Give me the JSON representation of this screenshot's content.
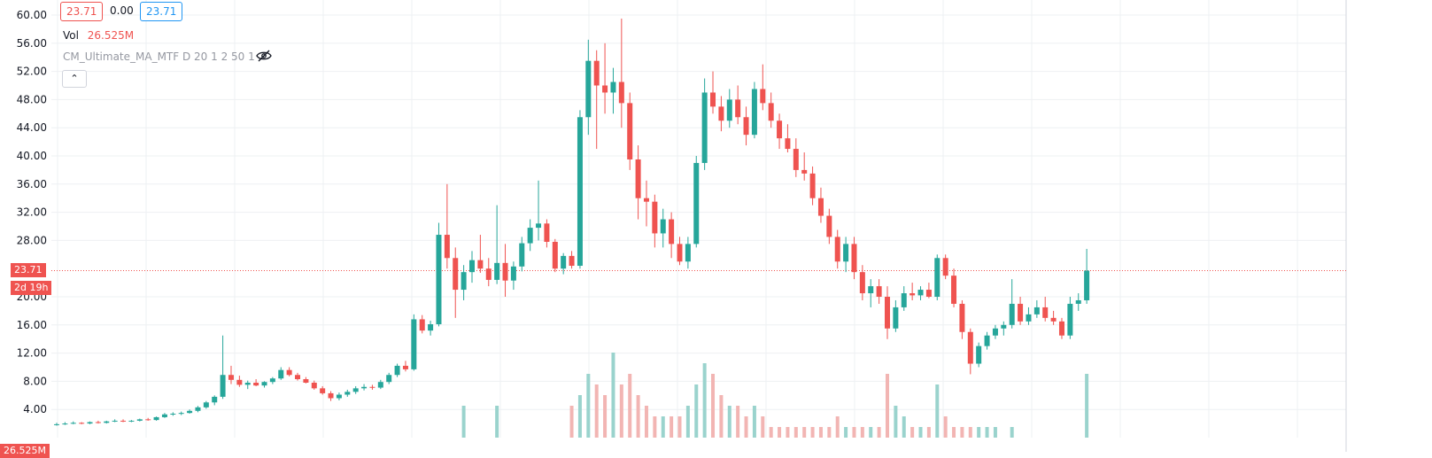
{
  "header": {
    "open_value": "23.71",
    "change_value": "0.00",
    "close_value": "23.71",
    "vol_label": "Vol",
    "vol_value": "26.525M",
    "indicator_label": "CM_Ultimate_MA_MTF D 20 1 2 50 1",
    "collapse_glyph": "⌃"
  },
  "price_tag": {
    "value": "23.71",
    "countdown": "2d 19h"
  },
  "volume_tag": {
    "value": "26.525M"
  },
  "colors": {
    "up": "#26a69a",
    "down": "#ef5350",
    "up_volume": "#9ad3cd",
    "down_volume": "#f2b5b3",
    "grid": "#eef0f3",
    "price_line": "#ef5350",
    "open_box_border": "#ef5350",
    "close_box_border": "#2196f3"
  },
  "icons": {
    "hide_icon": "eye-crossed-icon",
    "collapse_icon": "chevron-up-icon"
  },
  "chart_data": {
    "type": "candlestick",
    "y_tick_labels": [
      "60.00",
      "56.00",
      "52.00",
      "48.00",
      "44.00",
      "40.00",
      "36.00",
      "32.00",
      "28.00",
      "20.00",
      "16.00",
      "12.00",
      "8.00",
      "4.00"
    ],
    "ylim": [
      0,
      60
    ],
    "grid": true,
    "last_price": 23.71,
    "candles": [
      [
        0,
        1.9,
        2.1,
        1.7,
        1.9,
        0.0
      ],
      [
        1,
        1.9,
        2.2,
        1.8,
        2.0,
        0.0
      ],
      [
        2,
        2.0,
        2.3,
        1.9,
        2.1,
        0.0
      ],
      [
        3,
        2.1,
        2.2,
        1.9,
        2.0,
        0.0
      ],
      [
        4,
        2.0,
        2.3,
        1.9,
        2.2,
        0.0
      ],
      [
        5,
        2.2,
        2.4,
        2.0,
        2.1,
        0.0
      ],
      [
        6,
        2.1,
        2.4,
        2.0,
        2.3,
        0.0
      ],
      [
        7,
        2.3,
        2.6,
        2.2,
        2.4,
        0.0
      ],
      [
        8,
        2.4,
        2.6,
        2.2,
        2.3,
        0.0
      ],
      [
        9,
        2.3,
        2.5,
        2.2,
        2.4,
        0.0
      ],
      [
        10,
        2.4,
        2.7,
        2.3,
        2.6,
        0.0
      ],
      [
        11,
        2.6,
        2.8,
        2.4,
        2.5,
        0.0
      ],
      [
        12,
        2.5,
        3.0,
        2.4,
        2.9,
        0.0
      ],
      [
        13,
        2.9,
        3.5,
        2.8,
        3.3,
        0.0
      ],
      [
        14,
        3.3,
        3.6,
        3.1,
        3.4,
        0.0
      ],
      [
        15,
        3.4,
        3.7,
        3.2,
        3.5,
        0.0
      ],
      [
        16,
        3.5,
        4.0,
        3.4,
        3.8,
        0.0
      ],
      [
        17,
        3.8,
        4.5,
        3.6,
        4.3,
        0.0
      ],
      [
        18,
        4.3,
        5.2,
        4.1,
        5.0,
        0.0
      ],
      [
        19,
        5.0,
        6.0,
        4.6,
        5.8,
        0.0
      ],
      [
        20,
        5.8,
        14.5,
        5.5,
        8.9,
        0.0
      ],
      [
        21,
        8.9,
        10.2,
        7.6,
        8.2,
        0.0
      ],
      [
        22,
        8.2,
        8.8,
        7.2,
        7.5,
        0.0
      ],
      [
        23,
        7.5,
        8.1,
        6.9,
        7.8,
        0.0
      ],
      [
        24,
        7.8,
        8.3,
        7.3,
        7.4,
        0.0
      ],
      [
        25,
        7.4,
        8.0,
        7.1,
        7.9,
        0.0
      ],
      [
        26,
        7.9,
        8.6,
        7.6,
        8.4,
        0.0
      ],
      [
        27,
        8.4,
        10.0,
        8.2,
        9.6,
        0.0
      ],
      [
        28,
        9.6,
        10.0,
        8.7,
        8.9,
        0.0
      ],
      [
        29,
        8.9,
        9.2,
        8.1,
        8.3,
        0.0
      ],
      [
        30,
        8.3,
        8.6,
        7.7,
        7.8,
        0.0
      ],
      [
        31,
        7.8,
        8.1,
        6.8,
        7.0,
        0.0
      ],
      [
        32,
        7.0,
        7.3,
        6.1,
        6.3,
        0.0
      ],
      [
        33,
        6.3,
        6.6,
        5.2,
        5.6,
        0.0
      ],
      [
        34,
        5.6,
        6.4,
        5.3,
        6.1,
        0.0
      ],
      [
        35,
        6.1,
        6.8,
        5.8,
        6.5,
        0.0
      ],
      [
        36,
        6.5,
        7.3,
        6.2,
        7.0,
        0.0
      ],
      [
        37,
        7.0,
        7.6,
        6.7,
        7.2,
        0.0
      ],
      [
        38,
        7.2,
        7.5,
        6.8,
        7.1,
        0.0
      ],
      [
        39,
        7.1,
        8.2,
        6.9,
        7.9,
        0.0
      ],
      [
        40,
        7.9,
        9.2,
        7.6,
        8.9,
        0.0
      ],
      [
        41,
        8.9,
        10.5,
        8.6,
        10.2,
        0.0
      ],
      [
        42,
        10.2,
        10.9,
        9.4,
        9.7,
        0.0
      ],
      [
        43,
        9.7,
        17.5,
        9.5,
        16.8,
        0.0
      ],
      [
        44,
        16.8,
        17.4,
        14.8,
        15.2,
        0.0
      ],
      [
        45,
        15.2,
        16.6,
        14.5,
        16.1,
        0.0
      ],
      [
        46,
        16.1,
        30.5,
        15.8,
        28.8,
        0.0
      ],
      [
        47,
        28.8,
        36.0,
        24.0,
        25.5,
        0.0
      ],
      [
        48,
        25.5,
        27.0,
        17.0,
        21.0,
        0.0
      ],
      [
        49,
        21.0,
        24.5,
        19.5,
        23.5,
        0.3
      ],
      [
        50,
        23.5,
        26.5,
        22.0,
        25.2,
        0.0
      ],
      [
        51,
        25.2,
        28.8,
        23.4,
        24.0,
        0.0
      ],
      [
        52,
        24.0,
        25.5,
        21.5,
        22.4,
        0.0
      ],
      [
        53,
        22.4,
        33.0,
        21.8,
        24.8,
        0.3
      ],
      [
        54,
        24.8,
        27.5,
        20.0,
        22.3,
        0.0
      ],
      [
        55,
        22.3,
        25.0,
        21.0,
        24.3,
        0.0
      ],
      [
        56,
        24.3,
        28.5,
        23.6,
        27.6,
        0.0
      ],
      [
        57,
        27.6,
        31.0,
        26.5,
        29.8,
        0.0
      ],
      [
        58,
        29.8,
        36.5,
        28.0,
        30.4,
        0.0
      ],
      [
        59,
        30.4,
        31.0,
        27.0,
        27.8,
        0.0
      ],
      [
        60,
        27.8,
        28.2,
        23.5,
        24.0,
        0.0
      ],
      [
        61,
        24.0,
        26.2,
        23.2,
        25.8,
        0.0
      ],
      [
        62,
        25.8,
        26.5,
        24.0,
        24.4,
        0.3
      ],
      [
        63,
        24.4,
        46.5,
        24.0,
        45.5,
        0.4
      ],
      [
        64,
        45.5,
        56.5,
        43.0,
        53.5,
        0.6
      ],
      [
        65,
        53.5,
        55.0,
        41.0,
        50.0,
        0.5
      ],
      [
        66,
        50.0,
        56.0,
        46.0,
        49.0,
        0.4
      ],
      [
        67,
        49.0,
        52.5,
        46.0,
        50.5,
        0.8
      ],
      [
        68,
        50.5,
        59.5,
        44.0,
        47.5,
        0.5
      ],
      [
        69,
        47.5,
        49.0,
        38.0,
        39.5,
        0.6
      ],
      [
        70,
        39.5,
        41.5,
        31.0,
        34.0,
        0.4
      ],
      [
        71,
        34.0,
        36.5,
        30.0,
        33.5,
        0.3
      ],
      [
        72,
        33.5,
        34.5,
        27.0,
        29.0,
        0.2
      ],
      [
        73,
        29.0,
        32.5,
        27.0,
        31.0,
        0.2
      ],
      [
        74,
        31.0,
        32.0,
        25.5,
        27.5,
        0.2
      ],
      [
        75,
        27.5,
        28.5,
        24.5,
        25.0,
        0.2
      ],
      [
        76,
        25.0,
        28.5,
        24.0,
        27.5,
        0.3
      ],
      [
        77,
        27.5,
        40.0,
        27.0,
        39.0,
        0.5
      ],
      [
        78,
        39.0,
        51.0,
        38.0,
        49.0,
        0.7
      ],
      [
        79,
        49.0,
        52.0,
        46.0,
        47.0,
        0.6
      ],
      [
        80,
        47.0,
        48.5,
        43.5,
        45.0,
        0.4
      ],
      [
        81,
        45.0,
        49.5,
        44.0,
        48.0,
        0.3
      ],
      [
        82,
        48.0,
        50.0,
        44.5,
        45.5,
        0.3
      ],
      [
        83,
        45.5,
        47.0,
        41.5,
        43.0,
        0.2
      ],
      [
        84,
        43.0,
        50.5,
        42.5,
        49.5,
        0.3
      ],
      [
        85,
        49.5,
        53.0,
        46.5,
        47.5,
        0.2
      ],
      [
        86,
        47.5,
        49.0,
        44.0,
        45.0,
        0.1
      ],
      [
        87,
        45.0,
        46.0,
        41.0,
        42.5,
        0.1
      ],
      [
        88,
        42.5,
        44.5,
        40.5,
        41.0,
        0.1
      ],
      [
        89,
        41.0,
        42.5,
        37.0,
        38.0,
        0.1
      ],
      [
        90,
        38.0,
        40.5,
        36.5,
        37.5,
        0.1
      ],
      [
        91,
        37.5,
        38.5,
        33.0,
        34.0,
        0.1
      ],
      [
        92,
        34.0,
        35.5,
        30.5,
        31.5,
        0.1
      ],
      [
        93,
        31.5,
        32.5,
        27.5,
        28.5,
        0.1
      ],
      [
        94,
        28.5,
        29.5,
        24.0,
        25.0,
        0.2
      ],
      [
        95,
        25.0,
        28.5,
        23.5,
        27.5,
        0.1
      ],
      [
        96,
        27.5,
        28.5,
        22.5,
        23.5,
        0.1
      ],
      [
        97,
        23.5,
        24.5,
        19.5,
        20.5,
        0.1
      ],
      [
        98,
        20.5,
        22.5,
        18.5,
        21.5,
        0.1
      ],
      [
        99,
        21.5,
        22.5,
        19.0,
        20.0,
        0.1
      ],
      [
        100,
        20.0,
        21.5,
        14.0,
        15.5,
        0.6
      ],
      [
        101,
        15.5,
        19.5,
        15.0,
        18.5,
        0.3
      ],
      [
        102,
        18.5,
        21.5,
        18.0,
        20.5,
        0.2
      ],
      [
        103,
        20.5,
        22.0,
        19.5,
        20.2,
        0.1
      ],
      [
        104,
        20.2,
        21.5,
        19.5,
        21.0,
        0.1
      ],
      [
        105,
        21.0,
        22.0,
        19.8,
        20.0,
        0.1
      ],
      [
        106,
        20.0,
        26.0,
        19.5,
        25.5,
        0.5
      ],
      [
        107,
        25.5,
        26.0,
        22.5,
        23.0,
        0.2
      ],
      [
        108,
        23.0,
        24.0,
        18.5,
        19.0,
        0.1
      ],
      [
        109,
        19.0,
        19.5,
        14.0,
        15.0,
        0.1
      ],
      [
        110,
        15.0,
        15.5,
        9.0,
        10.5,
        0.1
      ],
      [
        111,
        10.5,
        13.5,
        10.0,
        13.0,
        0.1
      ],
      [
        112,
        13.0,
        15.0,
        12.5,
        14.5,
        0.1
      ],
      [
        113,
        14.5,
        16.0,
        14.0,
        15.5,
        0.1
      ],
      [
        114,
        15.5,
        16.5,
        14.5,
        16.0,
        0.0
      ],
      [
        115,
        16.0,
        22.5,
        15.5,
        19.0,
        0.1
      ],
      [
        116,
        19.0,
        20.0,
        16.0,
        16.5,
        0.0
      ],
      [
        117,
        16.5,
        18.5,
        16.0,
        17.5,
        0.0
      ],
      [
        118,
        17.5,
        19.5,
        17.0,
        18.5,
        0.0
      ],
      [
        119,
        18.5,
        20.0,
        16.5,
        17.0,
        0.0
      ],
      [
        120,
        17.0,
        18.0,
        16.0,
        16.5,
        0.0
      ],
      [
        121,
        16.5,
        17.0,
        14.0,
        14.5,
        0.0
      ],
      [
        122,
        14.5,
        20.0,
        14.0,
        19.0,
        0.0
      ],
      [
        123,
        19.0,
        20.5,
        18.0,
        19.5,
        0.0
      ],
      [
        124,
        19.5,
        26.8,
        19.0,
        23.71,
        0.6
      ]
    ]
  }
}
